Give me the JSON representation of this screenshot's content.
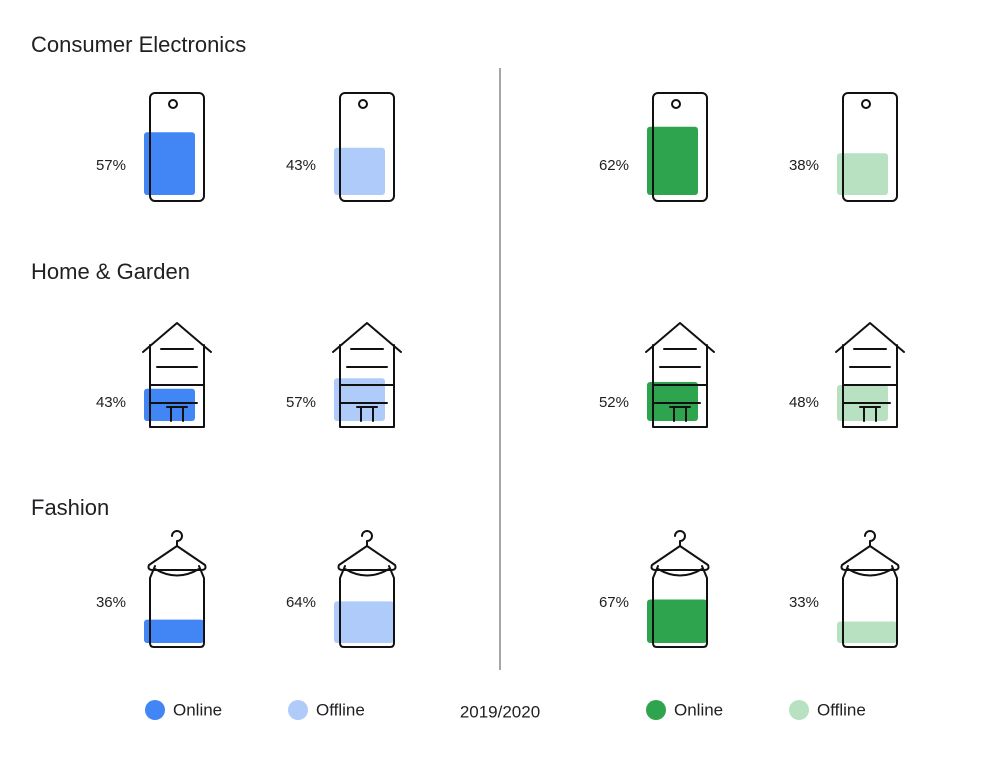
{
  "chart_data": {
    "type": "icon-fill",
    "categories": [
      "Consumer Electronics",
      "Home & Garden",
      "Fashion"
    ],
    "subtitle": "2019/2020",
    "series": [
      {
        "name": "Online",
        "color": "#4285f4",
        "values": [
          57,
          43,
          36
        ],
        "value_labels": [
          "57%",
          "43%",
          "36%"
        ]
      },
      {
        "name": "Offline",
        "color": "#aecbfa",
        "values": [
          43,
          57,
          64
        ],
        "value_labels": [
          "43%",
          "57%",
          "64%"
        ]
      },
      {
        "name": "Online",
        "color": "#2fa44f",
        "values": [
          62,
          52,
          67
        ],
        "value_labels": [
          "62%",
          "52%",
          "67%"
        ]
      },
      {
        "name": "Offline",
        "color": "#b7e1c1",
        "values": [
          38,
          48,
          33
        ],
        "value_labels": [
          "38%",
          "48%",
          "33%"
        ]
      }
    ]
  }
}
